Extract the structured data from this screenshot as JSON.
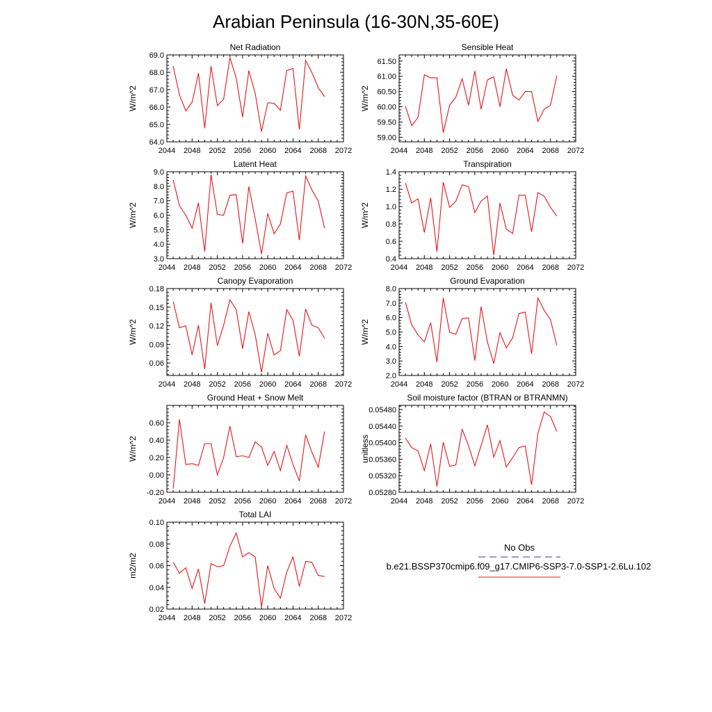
{
  "page_title": "Arabian Peninsula (16-30N,35-60E)",
  "line_color": "#e8141a",
  "obs_color": "#3a3aa0",
  "legend": {
    "obs_label": "No Obs",
    "model_label": "b.e21.BSSP370cmip6.f09_g17.CMIP6-SSP3-7.0-SSP1-2.6Lu.102"
  },
  "chart_data": [
    {
      "type": "line",
      "title": "Net Radiation",
      "ylabel": "W/m^2",
      "xlim": [
        2044,
        2072
      ],
      "ylim": [
        64,
        69
      ],
      "xticks": [
        2044,
        2048,
        2052,
        2056,
        2060,
        2064,
        2068,
        2072
      ],
      "yticks": [
        64,
        65,
        66,
        67,
        68,
        69
      ],
      "ytick_labels": [
        "64.0",
        "65.0",
        "66.0",
        "67.0",
        "68.0",
        "69.0"
      ],
      "x": [
        2045,
        2046,
        2047,
        2048,
        2049,
        2050,
        2051,
        2052,
        2053,
        2054,
        2055,
        2056,
        2057,
        2058,
        2059,
        2060,
        2061,
        2062,
        2063,
        2064,
        2065,
        2066,
        2067,
        2068,
        2069
      ],
      "y": [
        68.35,
        66.7,
        65.78,
        66.28,
        67.95,
        64.78,
        68.35,
        66.08,
        66.45,
        68.85,
        67.65,
        65.42,
        68.1,
        66.8,
        64.6,
        66.25,
        66.22,
        65.82,
        68.1,
        68.22,
        64.7,
        68.68,
        67.98,
        67.12,
        66.6
      ]
    },
    {
      "type": "line",
      "title": "Sensible Heat",
      "ylabel": "W/m^2",
      "xlim": [
        2044,
        2072
      ],
      "ylim": [
        58.85,
        61.7
      ],
      "xticks": [
        2044,
        2048,
        2052,
        2056,
        2060,
        2064,
        2068,
        2072
      ],
      "yticks": [
        59.0,
        59.5,
        60.0,
        60.5,
        61.0,
        61.5
      ],
      "ytick_labels": [
        "59.00",
        "59.50",
        "60.00",
        "60.50",
        "61.00",
        "61.50"
      ],
      "x": [
        2045,
        2046,
        2047,
        2048,
        2049,
        2050,
        2051,
        2052,
        2053,
        2054,
        2055,
        2056,
        2057,
        2058,
        2059,
        2060,
        2061,
        2062,
        2063,
        2064,
        2065,
        2066,
        2067,
        2068,
        2069
      ],
      "y": [
        60.02,
        59.38,
        59.65,
        61.05,
        60.95,
        60.95,
        59.15,
        60.05,
        60.32,
        60.92,
        60.05,
        61.17,
        59.92,
        60.88,
        60.98,
        60.0,
        61.25,
        60.38,
        60.22,
        60.5,
        60.5,
        59.52,
        59.92,
        60.05,
        61.02
      ]
    },
    {
      "type": "line",
      "title": "Latent Heat",
      "ylabel": "W/m^2",
      "xlim": [
        2044,
        2072
      ],
      "ylim": [
        3,
        9
      ],
      "xticks": [
        2044,
        2048,
        2052,
        2056,
        2060,
        2064,
        2068,
        2072
      ],
      "yticks": [
        3,
        4,
        5,
        6,
        7,
        8,
        9
      ],
      "ytick_labels": [
        "3.0",
        "4.0",
        "5.0",
        "6.0",
        "7.0",
        "8.0",
        "9.0"
      ],
      "x": [
        2045,
        2046,
        2047,
        2048,
        2049,
        2050,
        2051,
        2052,
        2053,
        2054,
        2055,
        2056,
        2057,
        2058,
        2059,
        2060,
        2061,
        2062,
        2063,
        2064,
        2065,
        2066,
        2067,
        2068,
        2069
      ],
      "y": [
        8.45,
        6.65,
        6.0,
        5.1,
        6.85,
        3.5,
        8.8,
        6.05,
        6.0,
        7.38,
        7.42,
        4.05,
        7.98,
        5.75,
        3.32,
        6.12,
        4.72,
        5.4,
        7.55,
        7.65,
        4.28,
        8.7,
        7.75,
        6.98,
        5.1
      ]
    },
    {
      "type": "line",
      "title": "Transpiration",
      "ylabel": "W/m^2",
      "xlim": [
        2044,
        2072
      ],
      "ylim": [
        0.4,
        1.4
      ],
      "xticks": [
        2044,
        2048,
        2052,
        2056,
        2060,
        2064,
        2068,
        2072
      ],
      "yticks": [
        0.4,
        0.6,
        0.8,
        1.0,
        1.2,
        1.4
      ],
      "ytick_labels": [
        "0.4",
        "0.6",
        "0.8",
        "1.0",
        "1.2",
        "1.4"
      ],
      "x": [
        2045,
        2046,
        2047,
        2048,
        2049,
        2050,
        2051,
        2052,
        2053,
        2054,
        2055,
        2056,
        2057,
        2058,
        2059,
        2060,
        2061,
        2062,
        2063,
        2064,
        2065,
        2066,
        2067,
        2068,
        2069
      ],
      "y": [
        1.27,
        1.04,
        1.09,
        0.7,
        1.1,
        0.48,
        1.28,
        0.99,
        1.06,
        1.25,
        1.23,
        0.93,
        1.06,
        1.12,
        0.44,
        1.04,
        0.74,
        0.69,
        1.13,
        1.13,
        0.71,
        1.16,
        1.12,
        0.99,
        0.89
      ]
    },
    {
      "type": "line",
      "title": "Canopy Evaporation",
      "ylabel": "W/m^2",
      "xlim": [
        2044,
        2072
      ],
      "ylim": [
        0.04,
        0.18
      ],
      "xticks": [
        2044,
        2048,
        2052,
        2056,
        2060,
        2064,
        2068,
        2072
      ],
      "yticks": [
        0.06,
        0.09,
        0.12,
        0.15,
        0.18
      ],
      "ytick_labels": [
        "0.06",
        "0.09",
        "0.12",
        "0.15",
        "0.18"
      ],
      "x": [
        2045,
        2046,
        2047,
        2048,
        2049,
        2050,
        2051,
        2052,
        2053,
        2054,
        2055,
        2056,
        2057,
        2058,
        2059,
        2060,
        2061,
        2062,
        2063,
        2064,
        2065,
        2066,
        2067,
        2068,
        2069
      ],
      "y": [
        0.159,
        0.117,
        0.12,
        0.073,
        0.121,
        0.05,
        0.157,
        0.088,
        0.121,
        0.162,
        0.146,
        0.083,
        0.143,
        0.106,
        0.045,
        0.108,
        0.073,
        0.08,
        0.146,
        0.129,
        0.071,
        0.147,
        0.121,
        0.117,
        0.1
      ]
    },
    {
      "type": "line",
      "title": "Ground Evaporation",
      "ylabel": "W/m^2",
      "xlim": [
        2044,
        2072
      ],
      "ylim": [
        2,
        8
      ],
      "xticks": [
        2044,
        2048,
        2052,
        2056,
        2060,
        2064,
        2068,
        2072
      ],
      "yticks": [
        2,
        3,
        4,
        5,
        6,
        7,
        8
      ],
      "ytick_labels": [
        "2.0",
        "3.0",
        "4.0",
        "5.0",
        "6.0",
        "7.0",
        "8.0"
      ],
      "x": [
        2045,
        2046,
        2047,
        2048,
        2049,
        2050,
        2051,
        2052,
        2053,
        2054,
        2055,
        2056,
        2057,
        2058,
        2059,
        2060,
        2061,
        2062,
        2063,
        2064,
        2065,
        2066,
        2067,
        2068,
        2069
      ],
      "y": [
        7.05,
        5.5,
        4.8,
        4.32,
        5.65,
        2.92,
        7.35,
        4.98,
        4.85,
        5.92,
        5.98,
        3.03,
        6.75,
        4.32,
        2.82,
        4.95,
        3.9,
        4.6,
        6.28,
        6.38,
        3.5,
        7.35,
        6.5,
        5.85,
        4.08
      ]
    },
    {
      "type": "line",
      "title": "Ground Heat + Snow Melt",
      "ylabel": "W/m^2",
      "xlim": [
        2044,
        2072
      ],
      "ylim": [
        -0.2,
        0.8
      ],
      "xticks": [
        2044,
        2048,
        2052,
        2056,
        2060,
        2064,
        2068,
        2072
      ],
      "yticks": [
        -0.2,
        0.0,
        0.2,
        0.4,
        0.6
      ],
      "ytick_labels": [
        "-0.20",
        "0.00",
        "0.20",
        "0.40",
        "0.60"
      ],
      "x": [
        2045,
        2046,
        2047,
        2048,
        2049,
        2050,
        2051,
        2052,
        2053,
        2054,
        2055,
        2056,
        2057,
        2058,
        2059,
        2060,
        2061,
        2062,
        2063,
        2064,
        2065,
        2066,
        2067,
        2068,
        2069
      ],
      "y": [
        -0.16,
        0.64,
        0.12,
        0.13,
        0.11,
        0.36,
        0.36,
        0.0,
        0.2,
        0.56,
        0.21,
        0.22,
        0.2,
        0.38,
        0.32,
        0.11,
        0.27,
        0.05,
        0.34,
        0.12,
        -0.07,
        0.46,
        0.26,
        0.09,
        0.5
      ]
    },
    {
      "type": "line",
      "title": "Soil moisture factor (BTRAN or BTRANMN)",
      "ylabel": "unitless",
      "xlim": [
        2044,
        2072
      ],
      "ylim": [
        0.0528,
        0.0549
      ],
      "xticks": [
        2044,
        2048,
        2052,
        2056,
        2060,
        2064,
        2068,
        2072
      ],
      "yticks": [
        0.0528,
        0.0532,
        0.0536,
        0.054,
        0.0544,
        0.0548
      ],
      "ytick_labels": [
        "0.05280",
        "0.05320",
        "0.05360",
        "0.05400",
        "0.05440",
        "0.05480"
      ],
      "x": [
        2045,
        2046,
        2047,
        2048,
        2049,
        2050,
        2051,
        2052,
        2053,
        2054,
        2055,
        2056,
        2057,
        2058,
        2059,
        2060,
        2061,
        2062,
        2063,
        2064,
        2065,
        2066,
        2067,
        2068,
        2069
      ],
      "y": [
        0.05411,
        0.05388,
        0.0538,
        0.05332,
        0.05397,
        0.05294,
        0.05401,
        0.05343,
        0.05346,
        0.05432,
        0.05393,
        0.05344,
        0.05393,
        0.05443,
        0.05365,
        0.05405,
        0.05341,
        0.05364,
        0.05388,
        0.05392,
        0.05298,
        0.05422,
        0.05474,
        0.05463,
        0.05427
      ]
    },
    {
      "type": "line",
      "title": "Total LAI",
      "ylabel": "m2/m2",
      "xlim": [
        2044,
        2072
      ],
      "ylim": [
        0.02,
        0.1
      ],
      "xticks": [
        2044,
        2048,
        2052,
        2056,
        2060,
        2064,
        2068,
        2072
      ],
      "yticks": [
        0.02,
        0.04,
        0.06,
        0.08,
        0.1
      ],
      "ytick_labels": [
        "0.02",
        "0.04",
        "0.06",
        "0.08",
        "0.10"
      ],
      "x": [
        2045,
        2046,
        2047,
        2048,
        2049,
        2050,
        2051,
        2052,
        2053,
        2054,
        2055,
        2056,
        2057,
        2058,
        2059,
        2060,
        2061,
        2062,
        2063,
        2064,
        2065,
        2066,
        2067,
        2068,
        2069
      ],
      "y": [
        0.063,
        0.053,
        0.058,
        0.039,
        0.057,
        0.025,
        0.062,
        0.059,
        0.06,
        0.078,
        0.09,
        0.068,
        0.072,
        0.068,
        0.022,
        0.06,
        0.039,
        0.03,
        0.054,
        0.068,
        0.041,
        0.064,
        0.063,
        0.051,
        0.05
      ]
    }
  ]
}
